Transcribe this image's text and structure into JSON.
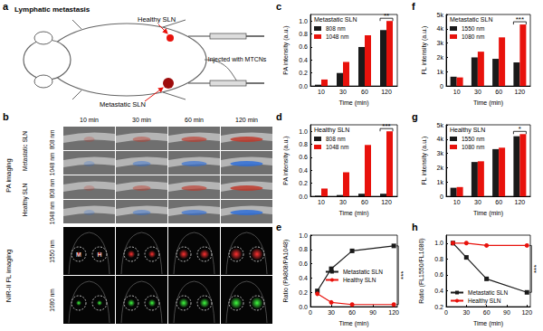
{
  "figure": {
    "a": {
      "panel_label": "a",
      "title": "Lymphatic metastasis",
      "healthy": "Healthy SLN",
      "metastatic": "Metastatic SLN",
      "injection": "Injected with MTCNs"
    },
    "b": {
      "panel_label": "b",
      "times": [
        "10 min",
        "30 min",
        "60 min",
        "120 min"
      ],
      "pa": {
        "title": "PA imaging",
        "groups": [
          {
            "name": "Metastatic SLN",
            "rows": [
              "808 nm",
              "1048 nm"
            ]
          },
          {
            "name": "Healthy SLN",
            "rows": [
              "808 nm",
              "1048 nm"
            ]
          }
        ]
      },
      "fl": {
        "title": "NIR-II FL imaging",
        "rows": [
          "1550 nm",
          "1080 nm"
        ],
        "markers": [
          "M",
          "H"
        ]
      }
    }
  },
  "chart_data": [
    {
      "panel_label": "c",
      "type": "bar",
      "title": "Metastatic SLN",
      "categories": [
        "10",
        "30",
        "60",
        "120"
      ],
      "xlabel": "Time (min)",
      "ylabel": "PA intensity (a.u.)",
      "ylim": [
        0,
        1.1
      ],
      "yticks": [
        {
          "value": 0,
          "label": "0.0"
        },
        0.2,
        0.4,
        0.6,
        0.8,
        {
          "value": 1,
          "label": "1.0"
        }
      ],
      "series": [
        {
          "name": "808 nm",
          "color": "#1a1a1a",
          "values": [
            0.02,
            0.2,
            0.6,
            0.86
          ]
        },
        {
          "name": "1048 nm",
          "color": "#e8120c",
          "values": [
            0.1,
            0.37,
            0.78,
            1.0
          ]
        }
      ],
      "legend": "upper left",
      "annotations": [
        "**"
      ]
    },
    {
      "panel_label": "d",
      "type": "bar",
      "title": "Healthy SLN",
      "categories": [
        "10",
        "30",
        "60",
        "120"
      ],
      "xlabel": "Time (min)",
      "ylabel": "PA intensity (a.u.)",
      "ylim": [
        0,
        1.1
      ],
      "yticks": [
        {
          "value": 0,
          "label": "0.0"
        },
        0.2,
        0.4,
        0.6,
        0.8,
        {
          "value": 1,
          "label": "1.0"
        }
      ],
      "series": [
        {
          "name": "808 nm",
          "color": "#1a1a1a",
          "values": [
            0.01,
            0.02,
            0.04,
            0.04
          ]
        },
        {
          "name": "1048 nm",
          "color": "#e8120c",
          "values": [
            0.12,
            0.37,
            0.79,
            1.0
          ]
        }
      ],
      "legend": "upper left",
      "annotations": [
        "***"
      ]
    },
    {
      "panel_label": "e",
      "type": "line",
      "x": [
        10,
        30,
        60,
        120
      ],
      "xlim": [
        0,
        125
      ],
      "xticks": [
        0,
        30,
        60,
        90,
        120
      ],
      "xlabel": "Time (min)",
      "ylabel": "Ratio (PA808/PA1048)",
      "ylim": [
        0,
        1
      ],
      "yticks": [
        {
          "value": 0,
          "label": "0.0"
        },
        0.2,
        0.4,
        0.6,
        0.8,
        {
          "value": 1,
          "label": "1.0"
        }
      ],
      "series": [
        {
          "name": "Metastatic SLN",
          "color": "#1a1a1a",
          "marker": "square",
          "values": [
            0.22,
            0.53,
            0.78,
            0.85
          ]
        },
        {
          "name": "Healthy SLN",
          "color": "#e8120c",
          "marker": "circle",
          "values": [
            0.18,
            0.06,
            0.03,
            0.03
          ]
        }
      ],
      "legend": "right",
      "annotations": [
        "***"
      ]
    },
    {
      "panel_label": "f",
      "type": "bar",
      "title": "Metastatic SLN",
      "categories": [
        "10",
        "30",
        "60",
        "120"
      ],
      "xlabel": "Time (min)",
      "ylabel": "FL intensity (a.u.)",
      "ylim": [
        0,
        5000
      ],
      "yticks": [
        0,
        {
          "value": 1000,
          "label": "1k"
        },
        {
          "value": 2000,
          "label": "2k"
        },
        {
          "value": 3000,
          "label": "3k"
        },
        {
          "value": 4000,
          "label": "4k"
        },
        {
          "value": 5000,
          "label": "5k"
        }
      ],
      "series": [
        {
          "name": "1550 nm",
          "color": "#1a1a1a",
          "values": [
            650,
            2000,
            1900,
            1650
          ]
        },
        {
          "name": "1080 nm",
          "color": "#e8120c",
          "values": [
            600,
            2400,
            3400,
            4300
          ]
        }
      ],
      "legend": "upper left",
      "annotations": [
        "***"
      ]
    },
    {
      "panel_label": "g",
      "type": "bar",
      "title": "Healthy SLN",
      "categories": [
        "10",
        "30",
        "60",
        "120"
      ],
      "xlabel": "Time (min)",
      "ylabel": "FL intensity (a.u.)",
      "ylim": [
        0,
        5000
      ],
      "yticks": [
        0,
        {
          "value": 1000,
          "label": "1k"
        },
        {
          "value": 2000,
          "label": "2k"
        },
        {
          "value": 3000,
          "label": "3k"
        },
        {
          "value": 4000,
          "label": "4k"
        },
        {
          "value": 5000,
          "label": "5k"
        }
      ],
      "series": [
        {
          "name": "1550 nm",
          "color": "#1a1a1a",
          "values": [
            600,
            2400,
            3300,
            4200
          ]
        },
        {
          "name": "1080 nm",
          "color": "#e8120c",
          "values": [
            650,
            2450,
            3400,
            4350
          ]
        }
      ],
      "legend": "upper left",
      "annotations": [
        "*"
      ]
    },
    {
      "panel_label": "h",
      "type": "line",
      "x": [
        10,
        30,
        60,
        120
      ],
      "xlim": [
        0,
        125
      ],
      "xticks": [
        0,
        30,
        60,
        90,
        120
      ],
      "xlabel": "Time (min)",
      "ylabel": "Ratio (FL1550/FL1080)",
      "ylim": [
        0.2,
        1.1
      ],
      "yticks": [
        0.2,
        0.4,
        0.6,
        0.8,
        {
          "value": 1,
          "label": "1.0"
        }
      ],
      "series": [
        {
          "name": "Metastatic SLN",
          "color": "#1a1a1a",
          "marker": "square",
          "values": [
            1.0,
            0.82,
            0.55,
            0.38
          ]
        },
        {
          "name": "Healthy SLN",
          "color": "#e8120c",
          "marker": "circle",
          "values": [
            1.0,
            1.0,
            0.97,
            0.97
          ]
        }
      ],
      "legend": "lower left",
      "annotations": [
        "***"
      ]
    }
  ]
}
